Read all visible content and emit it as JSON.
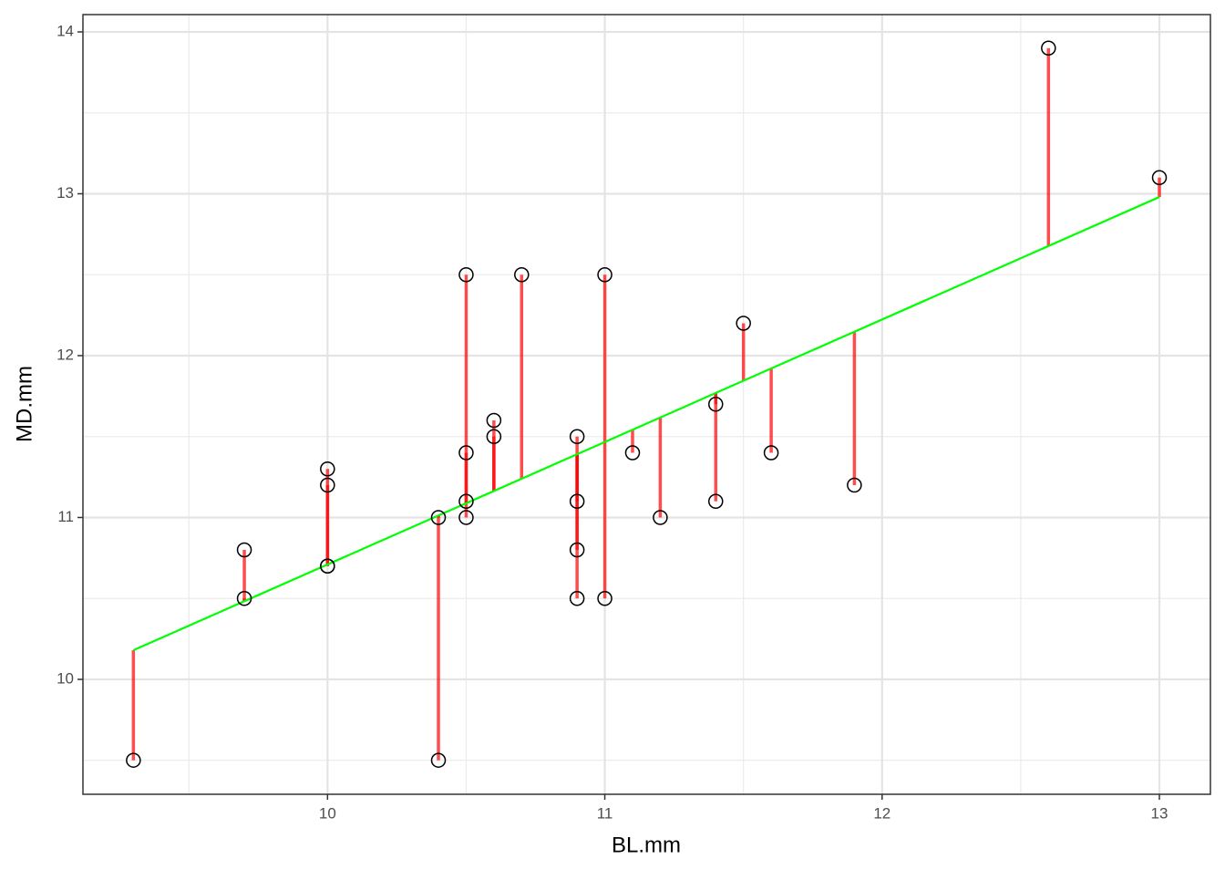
{
  "chart_data": {
    "type": "scatter",
    "x_label": "BL.mm",
    "y_label": "MD.mm",
    "x": [
      9.3,
      9.7,
      9.7,
      10.0,
      10.0,
      10.0,
      10.0,
      10.4,
      10.4,
      10.5,
      10.5,
      10.5,
      10.5,
      10.6,
      10.6,
      10.7,
      10.9,
      10.9,
      10.9,
      10.9,
      11.0,
      11.0,
      11.1,
      11.2,
      11.4,
      11.4,
      11.5,
      11.6,
      11.9,
      12.6,
      13.0
    ],
    "values": [
      9.5,
      10.8,
      10.5,
      11.3,
      11.2,
      10.7,
      10.7,
      11.0,
      9.5,
      12.5,
      11.4,
      11.1,
      11.0,
      11.6,
      11.5,
      12.5,
      11.5,
      11.1,
      10.8,
      10.5,
      12.5,
      10.5,
      11.4,
      11.0,
      11.7,
      11.1,
      12.2,
      11.4,
      11.2,
      13.9,
      13.1
    ],
    "color": "#000000",
    "residual_color": "#ff0000",
    "fit": {
      "x": [
        9.3,
        13.0
      ],
      "values": [
        10.18,
        12.98
      ],
      "color": "#00ff00"
    },
    "xlim": [
      9.118,
      13.184
    ],
    "ylim": [
      9.29,
      14.107
    ],
    "xticks": [
      10,
      11,
      12,
      13
    ],
    "yticks": [
      10,
      11,
      12,
      13,
      14
    ],
    "xminor": [
      9.5,
      10.5,
      11.5,
      12.5
    ],
    "yminor": [
      9.5,
      10.5,
      11.5,
      12.5,
      13.5
    ],
    "grid": true
  }
}
